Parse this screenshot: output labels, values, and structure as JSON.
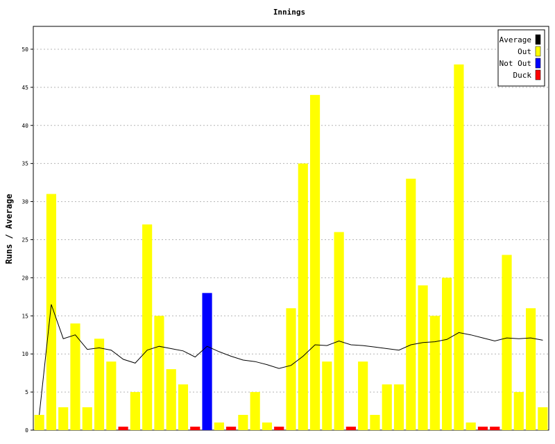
{
  "chart_data": {
    "type": "bar",
    "title": "Innings",
    "xlabel": "",
    "ylabel": "Runs / Average",
    "ylim": [
      0,
      53
    ],
    "yticks": [
      0,
      5,
      10,
      15,
      20,
      25,
      30,
      35,
      40,
      45,
      50
    ],
    "grid": true,
    "legend_position": "top-right",
    "legend": [
      {
        "label": "Average",
        "color": "#000000"
      },
      {
        "label": "Out",
        "color": "#ffff00"
      },
      {
        "label": "Not Out",
        "color": "#0000ff"
      },
      {
        "label": "Duck",
        "color": "#ff0000"
      }
    ],
    "innings": [
      {
        "runs": 2,
        "status": "out"
      },
      {
        "runs": 31,
        "status": "out"
      },
      {
        "runs": 3,
        "status": "out"
      },
      {
        "runs": 14,
        "status": "out"
      },
      {
        "runs": 3,
        "status": "out"
      },
      {
        "runs": 12,
        "status": "out"
      },
      {
        "runs": 9,
        "status": "out"
      },
      {
        "runs": 0,
        "status": "duck"
      },
      {
        "runs": 5,
        "status": "out"
      },
      {
        "runs": 27,
        "status": "out"
      },
      {
        "runs": 15,
        "status": "out"
      },
      {
        "runs": 8,
        "status": "out"
      },
      {
        "runs": 6,
        "status": "out"
      },
      {
        "runs": 0,
        "status": "duck"
      },
      {
        "runs": 18,
        "status": "notout"
      },
      {
        "runs": 1,
        "status": "out"
      },
      {
        "runs": 0,
        "status": "duck"
      },
      {
        "runs": 2,
        "status": "out"
      },
      {
        "runs": 5,
        "status": "out"
      },
      {
        "runs": 1,
        "status": "out"
      },
      {
        "runs": 0,
        "status": "duck"
      },
      {
        "runs": 16,
        "status": "out"
      },
      {
        "runs": 35,
        "status": "out"
      },
      {
        "runs": 44,
        "status": "out"
      },
      {
        "runs": 9,
        "status": "out"
      },
      {
        "runs": 26,
        "status": "out"
      },
      {
        "runs": 0,
        "status": "duck"
      },
      {
        "runs": 9,
        "status": "out"
      },
      {
        "runs": 2,
        "status": "out"
      },
      {
        "runs": 6,
        "status": "out"
      },
      {
        "runs": 6,
        "status": "out"
      },
      {
        "runs": 33,
        "status": "out"
      },
      {
        "runs": 19,
        "status": "out"
      },
      {
        "runs": 15,
        "status": "out"
      },
      {
        "runs": 20,
        "status": "out"
      },
      {
        "runs": 48,
        "status": "out"
      },
      {
        "runs": 1,
        "status": "out"
      },
      {
        "runs": 0,
        "status": "duck"
      },
      {
        "runs": 0,
        "status": "duck"
      },
      {
        "runs": 23,
        "status": "out"
      },
      {
        "runs": 5,
        "status": "out"
      },
      {
        "runs": 16,
        "status": "out"
      },
      {
        "runs": 3,
        "status": "out"
      }
    ],
    "average": [
      2,
      16.5,
      12,
      12.5,
      10.6,
      10.8,
      10.5,
      9.3,
      8.8,
      10.5,
      11,
      10.7,
      10.4,
      9.6,
      11,
      10.3,
      9.7,
      9.2,
      9,
      8.6,
      8.1,
      8.5,
      9.7,
      11.2,
      11.1,
      11.7,
      11.2,
      11.1,
      10.9,
      10.7,
      10.5,
      11.2,
      11.5,
      11.6,
      11.9,
      12.8,
      12.5,
      12.1,
      11.7,
      12.1,
      12,
      12.1,
      11.8
    ]
  }
}
